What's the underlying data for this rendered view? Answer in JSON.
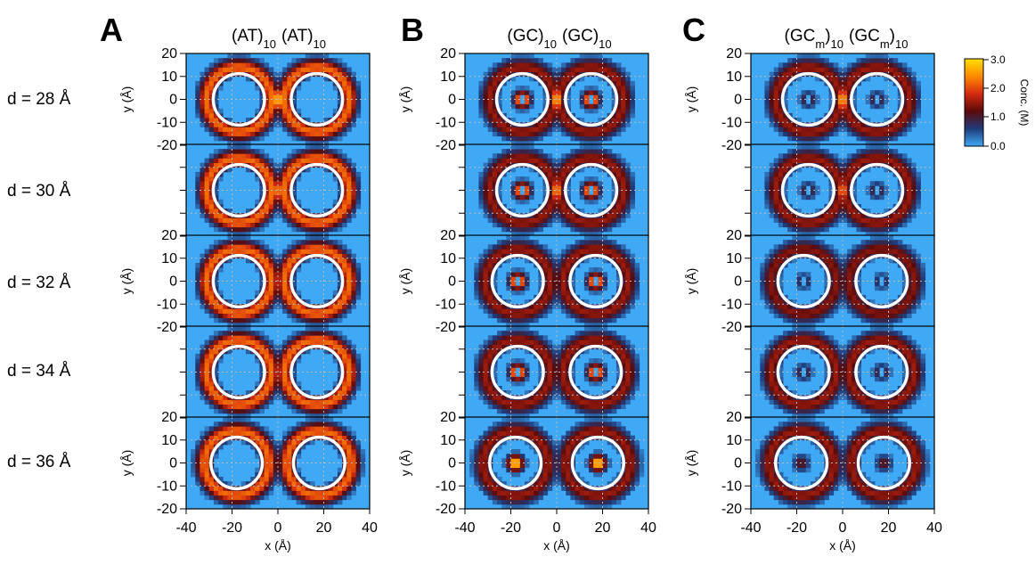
{
  "figure": {
    "row_labels": [
      "d = 28 Å",
      "d = 30 Å",
      "d = 32 Å",
      "d = 34 Å",
      "d = 36 Å"
    ],
    "colorbar": {
      "label": "Conc. (M)",
      "ticks": [
        "3.0",
        "2.0",
        "1.0",
        "0.0"
      ],
      "colors": [
        "#3fa9f5",
        "#1f3b7a",
        "#5a0a0a",
        "#d42a10",
        "#ff8a00",
        "#ffe000"
      ]
    },
    "circle_radius_A": 10
  },
  "chart_data": [
    {
      "type": "heatmap",
      "panel": "A",
      "title_parts": [
        "(AT)",
        "10",
        "(AT)",
        "10"
      ],
      "xlabel": "x (Å)",
      "ylabel": "y (Å)",
      "xlim": [
        -40,
        40
      ],
      "ylim": [
        -20,
        20
      ],
      "x_ticks": [
        "-40",
        "-20",
        "0",
        "20",
        "40"
      ],
      "y_ticks": [
        "20",
        "10",
        "0",
        "-10",
        "-20"
      ],
      "rows": [
        {
          "d": 28,
          "cx": [
            -17,
            17
          ],
          "bridge": 3.0,
          "core": 0.0,
          "ring": 2.2
        },
        {
          "d": 30,
          "cx": [
            -17,
            17
          ],
          "bridge": 2.6,
          "core": 0.0,
          "ring": 2.2
        },
        {
          "d": 32,
          "cx": [
            -17,
            17
          ],
          "bridge": 1.6,
          "core": 0.0,
          "ring": 2.2
        },
        {
          "d": 34,
          "cx": [
            -17,
            17
          ],
          "bridge": 1.2,
          "core": 0.0,
          "ring": 2.2
        },
        {
          "d": 36,
          "cx": [
            -18,
            18
          ],
          "bridge": 1.0,
          "core": 0.0,
          "ring": 2.2
        }
      ]
    },
    {
      "type": "heatmap",
      "panel": "B",
      "title_parts": [
        "(GC)",
        "10",
        "(GC)",
        "10"
      ],
      "xlabel": "x (Å)",
      "ylabel": "y (Å)",
      "xlim": [
        -40,
        40
      ],
      "ylim": [
        -20,
        20
      ],
      "x_ticks": [
        "-40",
        "-20",
        "0",
        "20",
        "40"
      ],
      "y_ticks": [
        "20",
        "10",
        "0",
        "-10",
        "-20"
      ],
      "rows": [
        {
          "d": 28,
          "cx": [
            -15,
            15
          ],
          "bridge": 2.8,
          "core": 3.0,
          "ring": 1.5
        },
        {
          "d": 30,
          "cx": [
            -15,
            15
          ],
          "bridge": 2.6,
          "core": 3.0,
          "ring": 1.5
        },
        {
          "d": 32,
          "cx": [
            -17,
            17
          ],
          "bridge": 1.0,
          "core": 3.0,
          "ring": 1.5
        },
        {
          "d": 34,
          "cx": [
            -17,
            17
          ],
          "bridge": 1.0,
          "core": 3.0,
          "ring": 1.5
        },
        {
          "d": 36,
          "cx": [
            -18,
            18
          ],
          "bridge": 1.0,
          "core": 3.0,
          "ring": 1.5
        }
      ]
    },
    {
      "type": "heatmap",
      "panel": "C",
      "title_parts": [
        "(GC",
        "m",
        ")",
        "10",
        "(GC",
        "m",
        ")",
        "10"
      ],
      "xlabel": "x (Å)",
      "ylabel": "y (Å)",
      "xlim": [
        -40,
        40
      ],
      "ylim": [
        -20,
        20
      ],
      "x_ticks": [
        "-40",
        "-20",
        "0",
        "20",
        "40"
      ],
      "y_ticks": [
        "20",
        "10",
        "0",
        "-10",
        "-20"
      ],
      "rows": [
        {
          "d": 28,
          "cx": [
            -15,
            15
          ],
          "bridge": 2.8,
          "core": 1.2,
          "ring": 1.5
        },
        {
          "d": 30,
          "cx": [
            -15,
            15
          ],
          "bridge": 2.4,
          "core": 1.2,
          "ring": 1.5
        },
        {
          "d": 32,
          "cx": [
            -17,
            17
          ],
          "bridge": 1.0,
          "core": 1.0,
          "ring": 1.4
        },
        {
          "d": 34,
          "cx": [
            -17,
            17
          ],
          "bridge": 1.0,
          "core": 1.2,
          "ring": 1.5
        },
        {
          "d": 36,
          "cx": [
            -18,
            18
          ],
          "bridge": 1.0,
          "core": 1.2,
          "ring": 1.5
        }
      ]
    }
  ]
}
